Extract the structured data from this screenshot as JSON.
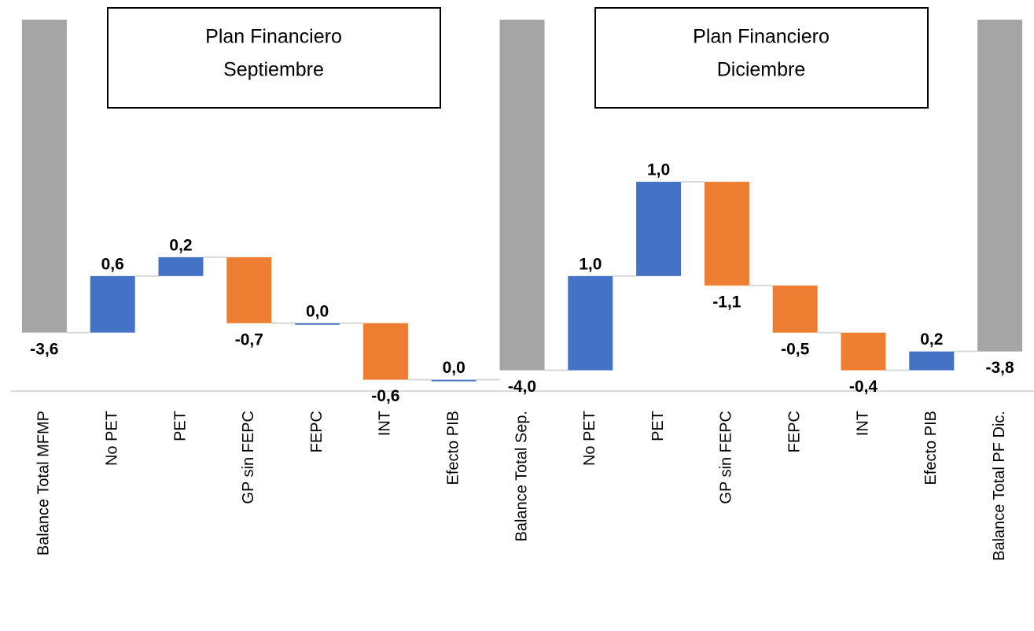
{
  "chart_data": {
    "type": "waterfall",
    "categories": [
      "Balance Total MFMP",
      "No PET",
      "PET",
      "GP sin FEPC",
      "FEPC",
      "INT",
      "Efecto PIB",
      "Balance Total Sep.",
      "No PET",
      "PET",
      "GP sin FEPC",
      "FEPC",
      "INT",
      "Efecto PIB",
      "Balance Total PF Dic."
    ],
    "values": [
      -3.6,
      0.6,
      0.2,
      -0.7,
      0.0,
      -0.6,
      0.0,
      -4.0,
      1.0,
      1.0,
      -1.1,
      -0.5,
      -0.4,
      0.2,
      -3.8
    ],
    "value_labels": [
      "-3,6",
      "0,6",
      "0,2",
      "-0,7",
      "0,0",
      "-0,6",
      "0,0",
      "-4,0",
      "1,0",
      "1,0",
      "-1,1",
      "-0,5",
      "-0,4",
      "0,2",
      "-3,8"
    ],
    "total_indices": [
      0,
      7,
      14
    ],
    "colors": {
      "increase": "#4472c4",
      "decrease": "#ed7d31",
      "total": "#a5a5a5"
    },
    "ylim": [
      -4.22,
      -0.28
    ],
    "annotations": [
      {
        "lines": [
          "Plan Financiero",
          "Septiembre"
        ]
      },
      {
        "lines": [
          "Plan Financiero",
          "Diciembre"
        ]
      }
    ]
  }
}
